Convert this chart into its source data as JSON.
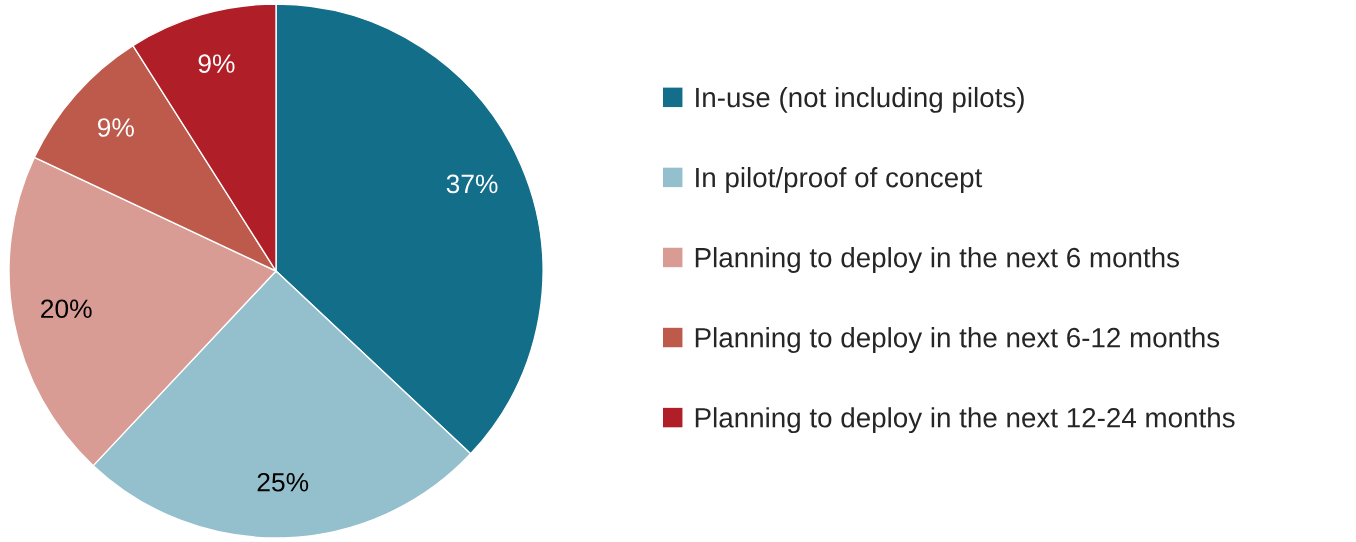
{
  "chart_data": {
    "type": "pie",
    "categories": [
      "In-use (not including pilots)",
      "In pilot/proof of concept",
      "Planning to deploy in the next 6 months",
      "Planning to deploy in the next 6-12 months",
      "Planning to deploy in the next 12-24 months"
    ],
    "values": [
      37,
      25,
      20,
      9,
      9
    ],
    "colors": [
      "#136e89",
      "#93c0cc",
      "#d89c94",
      "#bd5a4b",
      "#b01f28"
    ],
    "value_labels": [
      "37%",
      "25%",
      "20%",
      "9%",
      "9%"
    ],
    "legend": "right"
  }
}
